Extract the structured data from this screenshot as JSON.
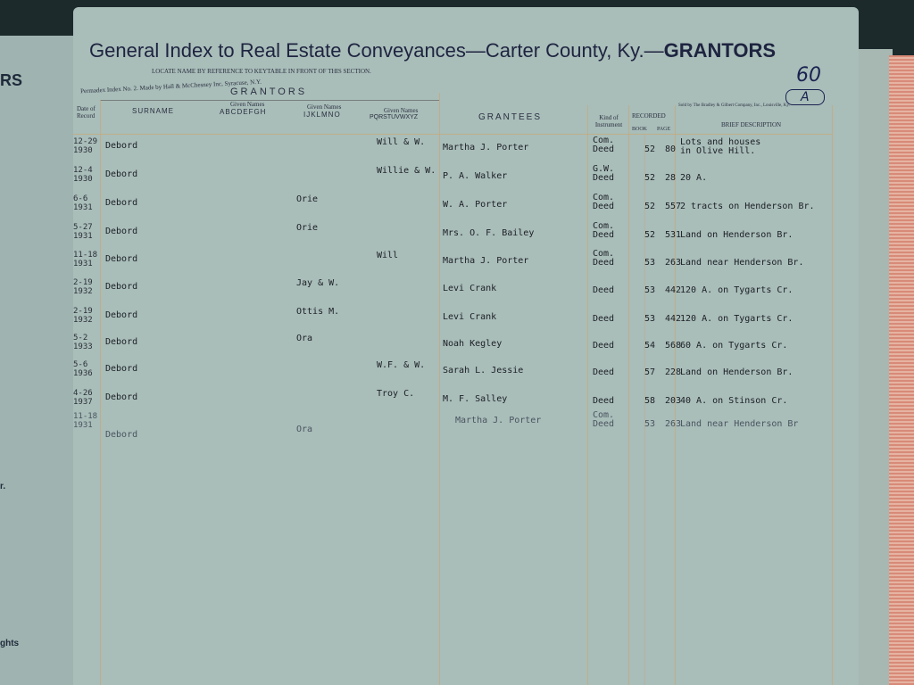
{
  "left_page": {
    "fragments": [
      "RS",
      "r.",
      "ghts"
    ]
  },
  "header": {
    "title": "General Index to Real Estate Conveyances",
    "county": "—Carter County, Ky.—",
    "section": "GRANTORS",
    "page_number": "60",
    "page_letter": "A",
    "locate_note": "LOCATE NAME BY REFERENCE TO KEYTABLE IN FRONT OF THIS SECTION.",
    "maker": "Permadex Index No. 2. Made by Hall & McChesney Inc, Syracuse, N.Y.",
    "seller": "Sold by The Bradley & Gilbert Company, Inc., Louisville, Ky."
  },
  "columns": {
    "grantors": "GRANTORS",
    "date": "Date of Record",
    "surname": "SURNAME",
    "given_label": "Given Names",
    "given_ah": "ABCDEFGH",
    "given_io": "IJKLMNO",
    "given_pz": "PQRSTUVWXYZ",
    "grantees": "GRANTEES",
    "kind": "Kind of Instrument",
    "recorded": "RECORDED",
    "book": "BOOK",
    "page": "PAGE",
    "description": "BRIEF DESCRIPTION"
  },
  "rows": [
    {
      "date": "12-29",
      "year": "1930",
      "surname": "Debord",
      "given_io": "",
      "given_pz": "Will & W.",
      "grantee": "Martha J. Porter",
      "kind1": "Com.",
      "kind2": "Deed",
      "book": "52",
      "page": "80",
      "desc": "Lots and houses",
      "desc2": "in Olive Hill."
    },
    {
      "date": "12-4",
      "year": "1930",
      "surname": "Debord",
      "given_io": "",
      "given_pz": "Willie & W.",
      "grantee": "P. A. Walker",
      "kind1": "G.W.",
      "kind2": "Deed",
      "book": "52",
      "page": "28",
      "desc": "20 A.",
      "desc2": ""
    },
    {
      "date": "6-6",
      "year": "1931",
      "surname": "Debord",
      "given_io": "Orie",
      "given_pz": "",
      "grantee": "W. A. Porter",
      "kind1": "Com.",
      "kind2": "Deed",
      "book": "52",
      "page": "557",
      "desc": "2 tracts on Henderson Br.",
      "desc2": ""
    },
    {
      "date": "5-27",
      "year": "1931",
      "surname": "Debord",
      "given_io": "Orie",
      "given_pz": "",
      "grantee": "Mrs. O. F. Bailey",
      "kind1": "Com.",
      "kind2": "Deed",
      "book": "52",
      "page": "531",
      "desc": "Land on Henderson Br.",
      "desc2": ""
    },
    {
      "date": "11-18",
      "year": "1931",
      "surname": "Debord",
      "given_io": "",
      "given_pz": "Will",
      "grantee": "Martha J. Porter",
      "kind1": "Com.",
      "kind2": "Deed",
      "book": "53",
      "page": "263",
      "desc": "Land near Henderson Br.",
      "desc2": ""
    },
    {
      "date": "2-19",
      "year": "1932",
      "surname": "Debord",
      "given_io": "Jay & W.",
      "given_pz": "",
      "grantee": "Levi Crank",
      "kind1": "",
      "kind2": "Deed",
      "book": "53",
      "page": "442",
      "desc": "120 A. on Tygarts Cr.",
      "desc2": ""
    },
    {
      "date": "2-19",
      "year": "1932",
      "surname": "Debord",
      "given_io": "Ottis M.",
      "given_pz": "",
      "grantee": "Levi Crank",
      "kind1": "",
      "kind2": "Deed",
      "book": "53",
      "page": "442",
      "desc": "120 A. on Tygarts Cr.",
      "desc2": ""
    },
    {
      "date": "5-2",
      "year": "1933",
      "surname": "Debord",
      "given_io": "Ora",
      "given_pz": "",
      "grantee": "Noah Kegley",
      "kind1": "",
      "kind2": "Deed",
      "book": "54",
      "page": "568",
      "desc": "60 A. on Tygarts Cr.",
      "desc2": ""
    },
    {
      "date": "5-6",
      "year": "1936",
      "surname": "Debord",
      "given_io": "",
      "given_pz": "W.F. & W.",
      "grantee": "Sarah L. Jessie",
      "kind1": "",
      "kind2": "Deed",
      "book": "57",
      "page": "228",
      "desc": "Land on Henderson Br.",
      "desc2": ""
    },
    {
      "date": "4-26",
      "year": "1937",
      "surname": "Debord",
      "given_io": "",
      "given_pz": "Troy C.",
      "grantee": "M. F. Salley",
      "kind1": "",
      "kind2": "Deed",
      "book": "58",
      "page": "203",
      "desc": "40 A. on Stinson Cr.",
      "desc2": ""
    },
    {
      "date": "11-18",
      "year": "1931",
      "surname": "Debord",
      "given_io": "Ora",
      "given_pz": "",
      "grantee": "Martha J. Porter",
      "kind1": "Com.",
      "kind2": "Deed",
      "book": "53",
      "page": "263",
      "desc": "Land near Henderson Br",
      "desc2": "",
      "faint": true
    }
  ]
}
